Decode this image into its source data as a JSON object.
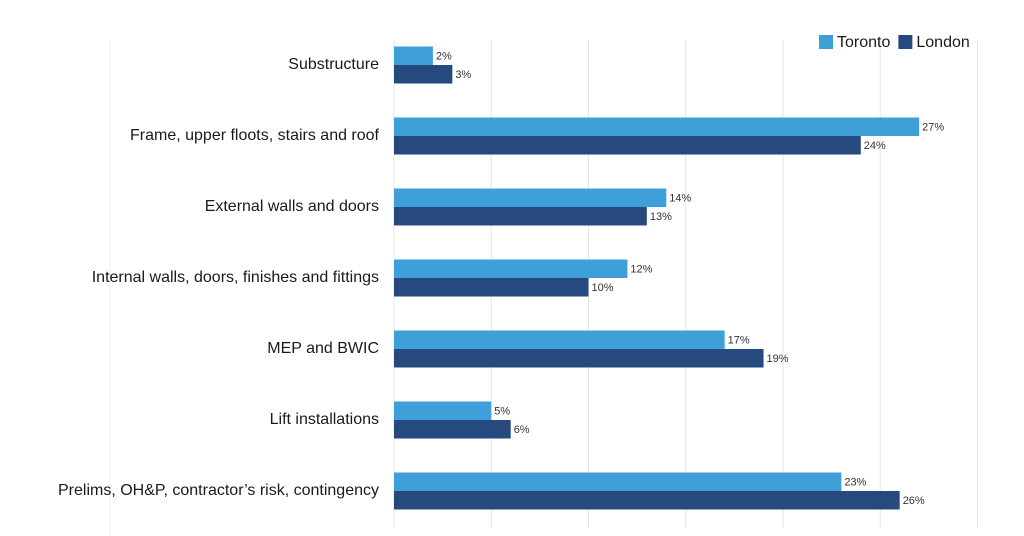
{
  "chart_data": {
    "type": "hbar",
    "categories": [
      "Substructure",
      "Frame, upper floots, stairs and roof",
      "External walls and doors",
      "Internal walls, doors, finishes and fittings",
      "MEP and BWIC",
      "Lift installations",
      "Prelims, OH&P, contractor’s risk, contingency"
    ],
    "series": [
      {
        "name": "Toronto",
        "color": "#3f9fd8",
        "values": [
          2,
          27,
          14,
          12,
          17,
          5,
          23
        ],
        "value_labels": [
          "2%",
          "27%",
          "14%",
          "12%",
          "17%",
          "5%",
          "23%"
        ]
      },
      {
        "name": "London",
        "color": "#264a7e",
        "values": [
          3,
          24,
          13,
          10,
          19,
          6,
          26
        ],
        "value_labels": [
          "3%",
          "24%",
          "13%",
          "10%",
          "19%",
          "6%",
          "26%"
        ]
      }
    ],
    "xlim": [
      0,
      31
    ],
    "xticks": [
      0,
      5,
      10,
      15,
      20,
      25,
      30
    ],
    "grid": true,
    "legend": "top-right"
  }
}
